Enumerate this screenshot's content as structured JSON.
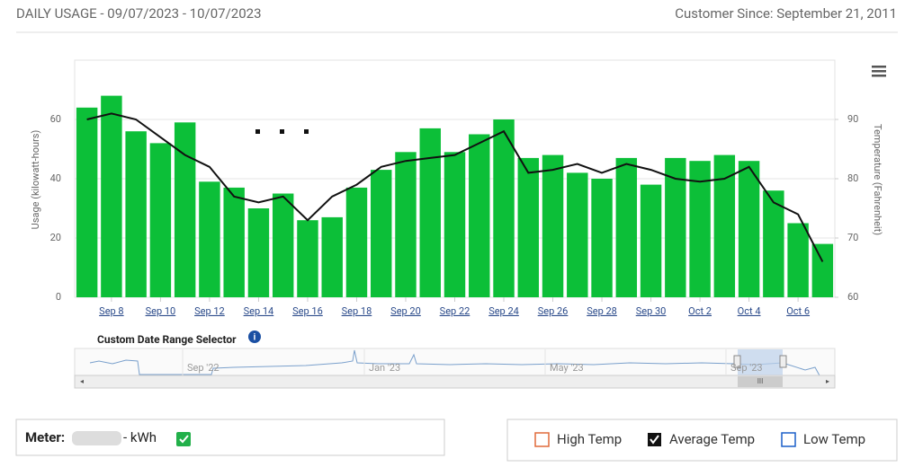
{
  "header": {
    "title": "DAILY USAGE - 09/07/2023 - 10/07/2023",
    "customer_since": "Customer Since: September 21, 2011"
  },
  "chart_data": {
    "type": "bar",
    "categories": [
      null,
      "Sep 8",
      null,
      "Sep 10",
      null,
      "Sep 12",
      null,
      "Sep 14",
      null,
      "Sep 16",
      null,
      "Sep 18",
      null,
      "Sep 20",
      null,
      "Sep 22",
      null,
      "Sep 24",
      null,
      "Sep 26",
      null,
      "Sep 28",
      null,
      "Sep 30",
      null,
      "Oct 2",
      null,
      "Oct 4",
      null,
      "Oct 6",
      null
    ],
    "series": [
      {
        "type": "bar",
        "color": "#0cbf38",
        "values": [
          64,
          68,
          56,
          52,
          59,
          39,
          37,
          30,
          35,
          26,
          27,
          37,
          43,
          49,
          57,
          49,
          55,
          60,
          47,
          48,
          42,
          40,
          47,
          38,
          47,
          46,
          48,
          46,
          36,
          25,
          18
        ]
      },
      {
        "type": "line",
        "axis": "y2",
        "color": "#111111",
        "values": [
          90,
          91,
          90,
          87,
          84,
          82,
          77,
          76,
          77,
          73,
          77,
          79,
          82,
          83,
          83.5,
          84,
          86,
          88,
          81,
          81.5,
          82.5,
          81,
          82.5,
          81.5,
          80,
          79.5,
          80,
          82,
          76,
          74,
          66
        ]
      }
    ],
    "ylabel": "Usage (kilowatt-hours)",
    "ylim": [
      0,
      80
    ],
    "yticks": [
      0,
      20,
      40,
      60
    ],
    "y2label": "Temperature (Fahrenheit)",
    "y2lim": [
      60,
      100
    ],
    "y2ticks": [
      60,
      70,
      80,
      90
    ]
  },
  "range_selector": {
    "title": "Custom Date Range Selector",
    "labels": [
      "Sep '22",
      "Jan '23",
      "May '23",
      "Sep '23"
    ]
  },
  "footer": {
    "meter_label": "Meter:",
    "unit": "- kWh",
    "legend": [
      "High Temp",
      "Average Temp",
      "Low Temp"
    ]
  }
}
